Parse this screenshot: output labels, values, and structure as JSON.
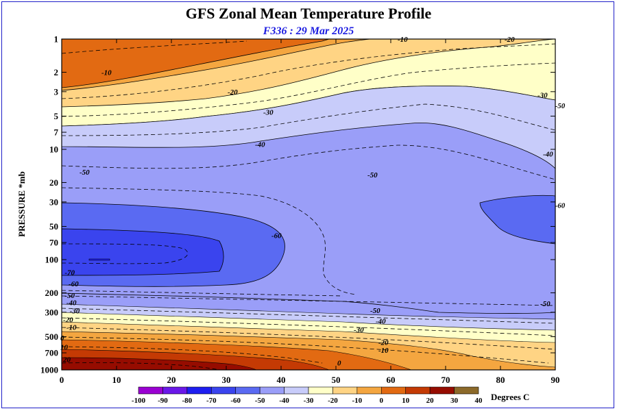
{
  "title": "GFS Zonal Mean Temperature Profile",
  "subtitle": "F336 : 29 Mar 2025",
  "chart_data": {
    "type": "contour",
    "ylabel": "PRESSURE *mb",
    "xlabel": "",
    "colorbar_label": "Degrees C",
    "x_ticks": [
      "0",
      "10",
      "20",
      "30",
      "40",
      "50",
      "60",
      "70",
      "80",
      "90"
    ],
    "xlim": [
      0,
      90
    ],
    "y_ticks": [
      "1",
      "2",
      "3",
      "5",
      "7",
      "10",
      "20",
      "30",
      "50",
      "70",
      "100",
      "200",
      "300",
      "500",
      "700",
      "1000"
    ],
    "ylim": [
      1000,
      1
    ],
    "y_scale": "log",
    "color_levels": [
      -100,
      -90,
      -80,
      -70,
      -60,
      -50,
      -40,
      -30,
      -20,
      -10,
      0,
      10,
      20,
      30,
      40
    ],
    "color_ranges": [
      {
        "from": -100,
        "to": -90,
        "color": "#9a00d2"
      },
      {
        "from": -90,
        "to": -80,
        "color": "#6a18e8"
      },
      {
        "from": -80,
        "to": -70,
        "color": "#1e1ef0"
      },
      {
        "from": -70,
        "to": -60,
        "color": "#3a44ee"
      },
      {
        "from": -60,
        "to": -50,
        "color": "#5a6af2"
      },
      {
        "from": -50,
        "to": -40,
        "color": "#9a9ef8"
      },
      {
        "from": -40,
        "to": -30,
        "color": "#c8ccfa"
      },
      {
        "from": -30,
        "to": -20,
        "color": "#ffffc8"
      },
      {
        "from": -20,
        "to": -10,
        "color": "#ffd484"
      },
      {
        "from": -10,
        "to": 0,
        "color": "#f4a640"
      },
      {
        "from": 0,
        "to": 10,
        "color": "#e26a12"
      },
      {
        "from": 10,
        "to": 20,
        "color": "#c43a04"
      },
      {
        "from": 20,
        "to": 30,
        "color": "#960c00"
      },
      {
        "from": 30,
        "to": 40,
        "color": "#8c6a2a"
      }
    ],
    "contour_labels": [
      {
        "text": "-10",
        "x": 7,
        "p": 2
      },
      {
        "text": "-10",
        "x": 61,
        "p": 1
      },
      {
        "text": "-20",
        "x": 80.5,
        "p": 1
      },
      {
        "text": "-20",
        "x": 30,
        "p": 3
      },
      {
        "text": "-30",
        "x": 36.5,
        "p": 4.6
      },
      {
        "text": "-30",
        "x": 86.5,
        "p": 3.2
      },
      {
        "text": "-40",
        "x": 35,
        "p": 9
      },
      {
        "text": "-40",
        "x": 87.5,
        "p": 11
      },
      {
        "text": "-50",
        "x": 3,
        "p": 16
      },
      {
        "text": "-50",
        "x": 55.5,
        "p": 17
      },
      {
        "text": "-60",
        "x": 38,
        "p": 60
      },
      {
        "text": "-70",
        "x": 0.3,
        "p": 130
      },
      {
        "text": "-60",
        "x": 1,
        "p": 165
      },
      {
        "text": "-50",
        "x": 0.3,
        "p": 210
      },
      {
        "text": "-40",
        "x": 0.6,
        "p": 245
      },
      {
        "text": "-30",
        "x": 1.2,
        "p": 290
      },
      {
        "text": "-20",
        "x": 0,
        "p": 350
      },
      {
        "text": "-10",
        "x": 0.6,
        "p": 410
      },
      {
        "text": "0",
        "x": -0.5,
        "p": 510
      },
      {
        "text": "10",
        "x": -0.5,
        "p": 620
      },
      {
        "text": "20",
        "x": 0,
        "p": 800
      },
      {
        "text": "-50",
        "x": 56,
        "p": 288
      },
      {
        "text": "-40",
        "x": 57,
        "p": 360
      },
      {
        "text": "-30",
        "x": 53,
        "p": 430
      },
      {
        "text": "-20",
        "x": 57.5,
        "p": 560
      },
      {
        "text": "-10",
        "x": 57.5,
        "p": 660
      },
      {
        "text": "0",
        "x": 50,
        "p": 860
      },
      {
        "text": "-50",
        "x": 87,
        "p": 250
      },
      {
        "text": "-50",
        "x": 89.7,
        "p": 4
      },
      {
        "text": "-60",
        "x": 89.7,
        "p": 32
      }
    ]
  }
}
